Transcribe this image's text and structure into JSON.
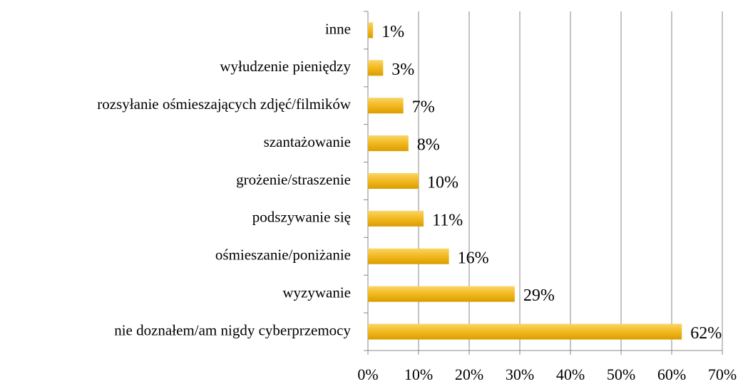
{
  "chart_data": {
    "type": "bar",
    "orientation": "horizontal",
    "categories": [
      "inne",
      "wyłudzenie pieniędzy",
      "rozsyłanie ośmieszających zdjęć/filmików",
      "szantażowanie",
      "grożenie/straszenie",
      "podszywanie się",
      "ośmieszanie/poniżanie",
      "wyzywanie",
      "nie doznałem/am nigdy cyberprzemocy"
    ],
    "values": [
      1,
      3,
      7,
      8,
      10,
      11,
      16,
      29,
      62
    ],
    "value_labels": [
      "1%",
      "3%",
      "7%",
      "8%",
      "10%",
      "11%",
      "16%",
      "29%",
      "62%"
    ],
    "color": "#f2b81e",
    "xlim": [
      0,
      70
    ],
    "xticks": [
      {
        "value": 0,
        "label": "0%"
      },
      {
        "value": 10,
        "label": "10%"
      },
      {
        "value": 20,
        "label": "20%"
      },
      {
        "value": 30,
        "label": "30%"
      },
      {
        "value": 40,
        "label": "40%"
      },
      {
        "value": 50,
        "label": "50%"
      },
      {
        "value": 60,
        "label": "60%"
      },
      {
        "value": 70,
        "label": "70%"
      }
    ],
    "grid": true
  }
}
